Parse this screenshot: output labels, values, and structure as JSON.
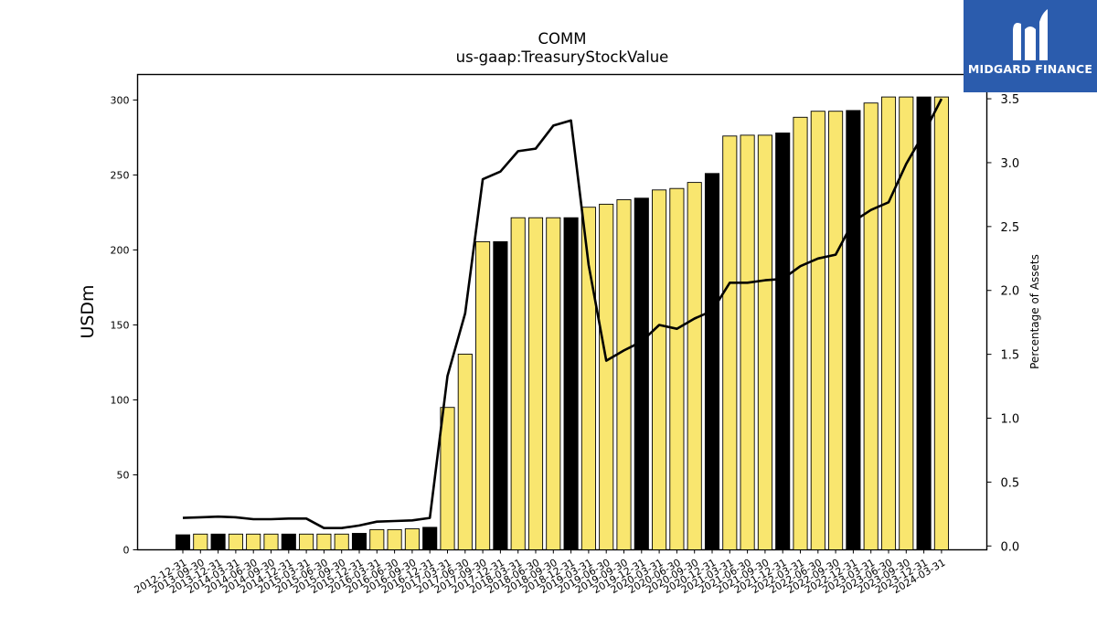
{
  "header": {
    "title": "COMM",
    "subtitle": "us-gaap:TreasuryStockValue"
  },
  "logo": {
    "brand": "MIDGARD FINANCE",
    "icon": "midgard-m-icon",
    "background": "#2b5cad"
  },
  "colors": {
    "bar_fill": "#f9e66f",
    "bar_highlight": "#000000",
    "line": "#000000"
  },
  "chart_data": {
    "type": "bar",
    "title": "COMM",
    "subtitle": "us-gaap:TreasuryStockValue",
    "ylabel": "USDm",
    "y2label": "Percentage of Assets",
    "ylim": [
      0,
      317
    ],
    "y2lim": [
      -0.03,
      3.69
    ],
    "yticks": [
      0,
      50,
      100,
      150,
      200,
      250,
      300
    ],
    "y2ticks": [
      0.0,
      0.5,
      1.0,
      1.5,
      2.0,
      2.5,
      3.0,
      3.5
    ],
    "categories": [
      "2012-12-31",
      "2013-09-30",
      "2013-12-31",
      "2014-03-31",
      "2014-06-30",
      "2014-09-30",
      "2014-12-31",
      "2015-03-31",
      "2015-06-30",
      "2015-09-30",
      "2015-12-31",
      "2016-03-31",
      "2016-06-30",
      "2016-09-30",
      "2016-12-31",
      "2017-03-31",
      "2017-06-30",
      "2017-09-30",
      "2017-12-31",
      "2018-03-31",
      "2018-06-30",
      "2018-09-30",
      "2018-12-31",
      "2019-03-31",
      "2019-06-30",
      "2019-09-30",
      "2019-12-31",
      "2020-03-31",
      "2020-06-30",
      "2020-09-30",
      "2020-12-31",
      "2021-03-31",
      "2021-06-30",
      "2021-09-30",
      "2021-12-31",
      "2022-03-31",
      "2022-06-30",
      "2022-09-30",
      "2022-12-31",
      "2023-03-31",
      "2023-06-30",
      "2023-09-30",
      "2023-12-31",
      "2024-03-31"
    ],
    "series": [
      {
        "type": "bar",
        "values": [
          10,
          10.5,
          10.5,
          10.5,
          10.5,
          10.5,
          10.5,
          10.5,
          10.5,
          10.5,
          11,
          13.5,
          13.5,
          14,
          15,
          95,
          130.5,
          205.5,
          205.5,
          221.5,
          221.5,
          221.5,
          221.5,
          228.5,
          230.5,
          233.5,
          234.5,
          240,
          241,
          245,
          251,
          276,
          276.5,
          276.5,
          278,
          288.5,
          292.5,
          292.5,
          293,
          298,
          302,
          302,
          302,
          302
        ],
        "highlight": [
          true,
          false,
          true,
          false,
          false,
          false,
          true,
          false,
          false,
          false,
          true,
          false,
          false,
          false,
          true,
          false,
          false,
          false,
          true,
          false,
          false,
          false,
          true,
          false,
          false,
          false,
          true,
          false,
          false,
          false,
          true,
          false,
          false,
          false,
          true,
          false,
          false,
          false,
          true,
          false,
          false,
          false,
          true,
          false
        ]
      },
      {
        "type": "line",
        "axis": "right",
        "values": [
          0.22,
          0.225,
          0.23,
          0.225,
          0.21,
          0.21,
          0.215,
          0.215,
          0.14,
          0.14,
          0.16,
          0.19,
          0.195,
          0.2,
          0.22,
          1.33,
          1.82,
          2.87,
          2.93,
          3.09,
          3.11,
          3.29,
          3.33,
          2.2,
          1.45,
          1.53,
          1.6,
          1.73,
          1.7,
          1.78,
          1.84,
          2.06,
          2.06,
          2.08,
          2.09,
          2.19,
          2.25,
          2.28,
          2.54,
          2.63,
          2.69,
          2.99,
          3.23,
          3.5
        ]
      }
    ],
    "grid": false,
    "legend": "none"
  }
}
